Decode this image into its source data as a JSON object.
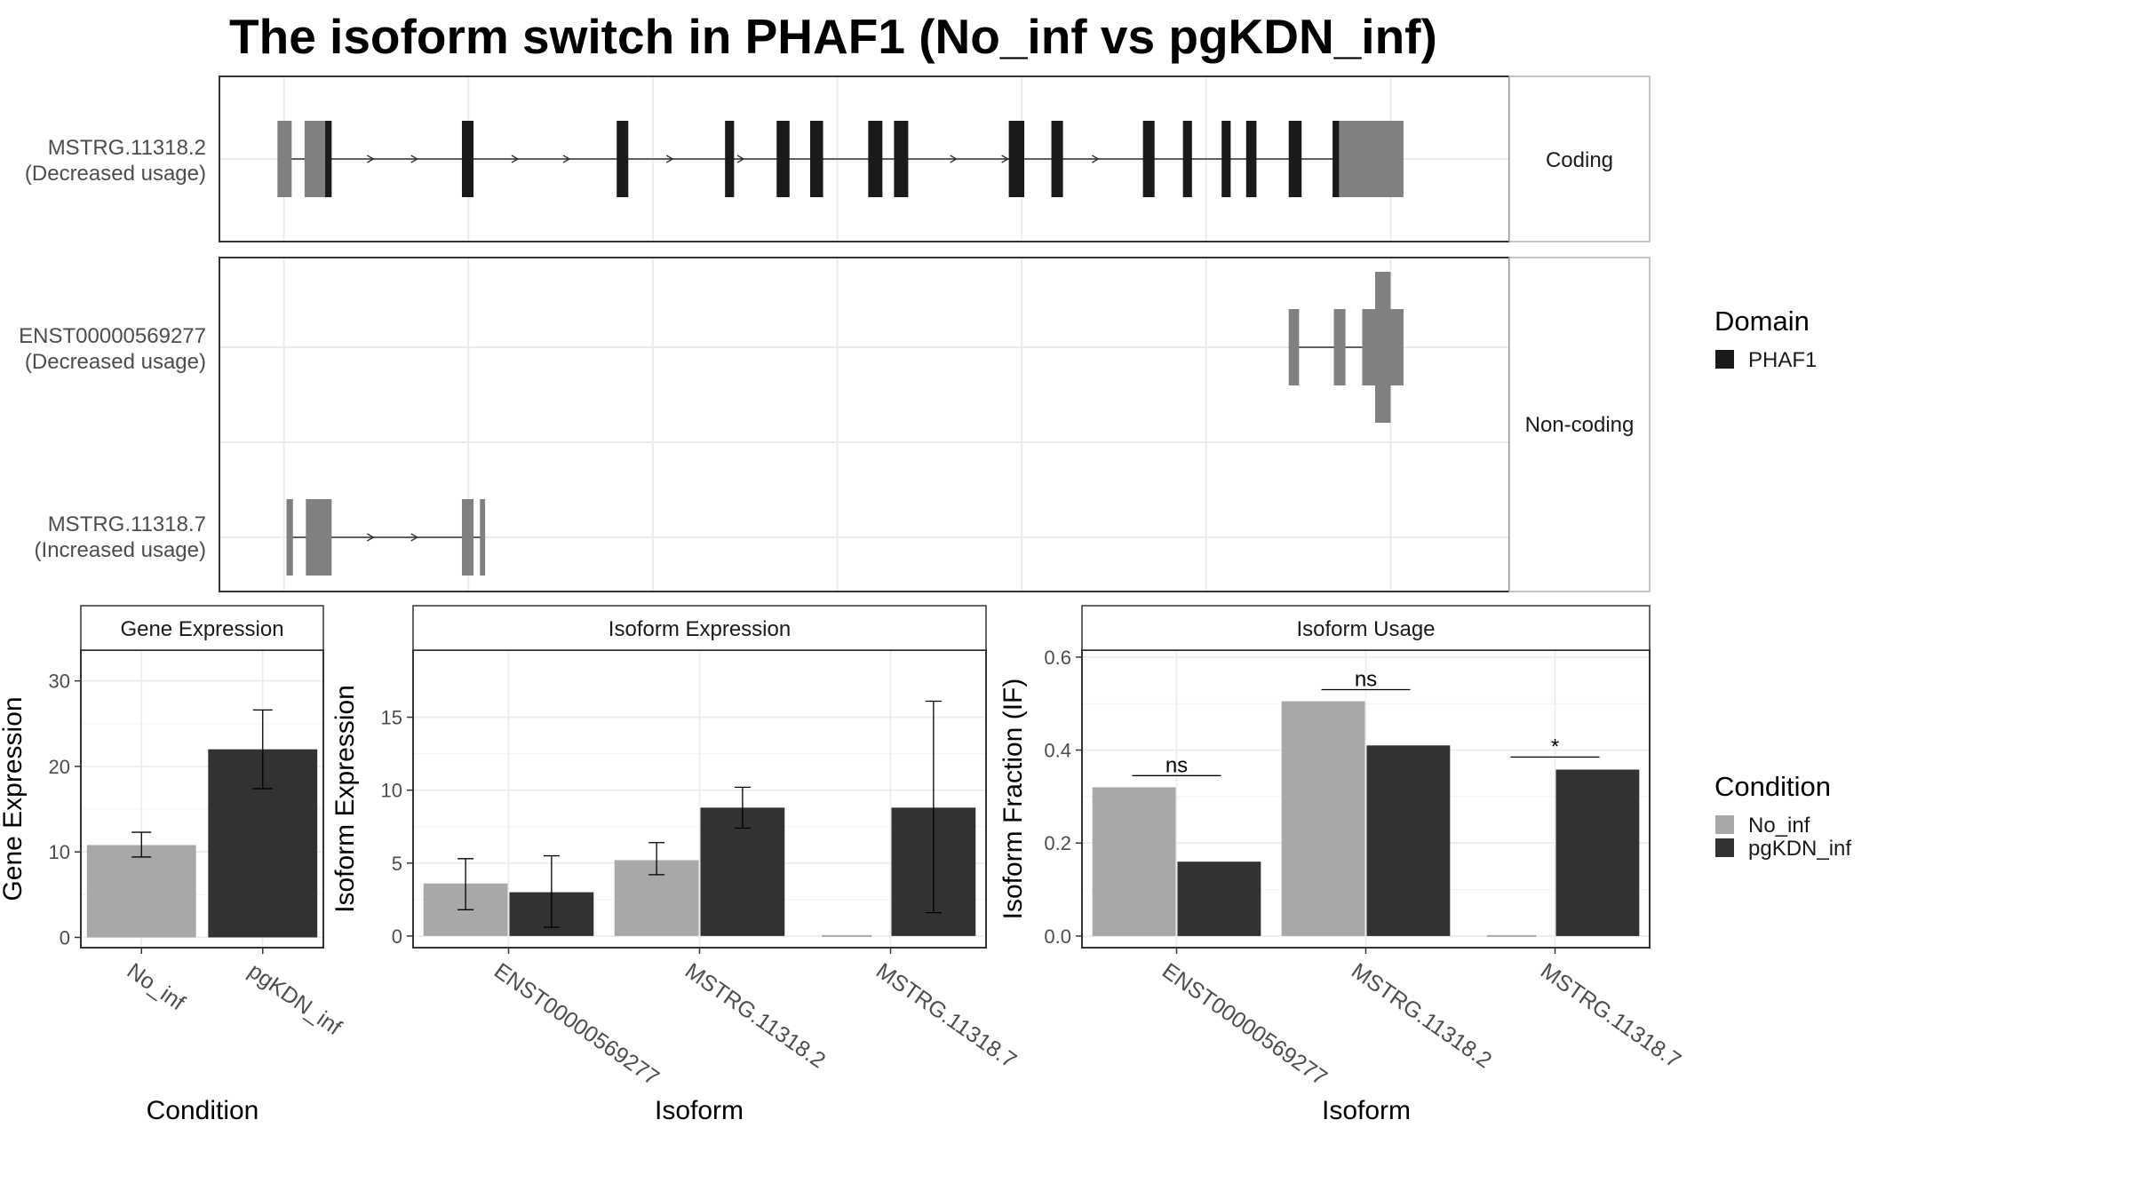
{
  "title": "The isoform switch in PHAF1 (No_inf vs pgKDN_inf)",
  "colors": {
    "domain_fill": "#1a1a1a",
    "exon_fill": "#808080",
    "no_inf": "#a8a8a8",
    "pgkdn_inf": "#323232",
    "grid": "#ebebeb",
    "panel_border": "#333333",
    "strip_border": "#b3b3b3"
  },
  "gene_model": {
    "facets": [
      "Coding",
      "Non-coding"
    ],
    "genome_range": [
      0,
      1000
    ],
    "isoforms": [
      {
        "id": "MSTRG.11318.2",
        "label_line1": "MSTRG.11318.2",
        "label_line2": "(Decreased usage)",
        "facet": "Coding",
        "span": [
          45,
          918
        ],
        "exons": [
          {
            "start": 45,
            "end": 56,
            "kind": "utr"
          },
          {
            "start": 66,
            "end": 80,
            "kind": "utr"
          },
          {
            "start": 75,
            "end": 83,
            "kind": "utr"
          },
          {
            "start": 82,
            "end": 87,
            "kind": "cds"
          },
          {
            "start": 188,
            "end": 197,
            "kind": "cds"
          },
          {
            "start": 308,
            "end": 317,
            "kind": "cds"
          },
          {
            "start": 392,
            "end": 399,
            "kind": "cds"
          },
          {
            "start": 432,
            "end": 442,
            "kind": "cds"
          },
          {
            "start": 458,
            "end": 468,
            "kind": "cds"
          },
          {
            "start": 503,
            "end": 514,
            "kind": "cds"
          },
          {
            "start": 523,
            "end": 534,
            "kind": "cds"
          },
          {
            "start": 612,
            "end": 624,
            "kind": "cds"
          },
          {
            "start": 645,
            "end": 654,
            "kind": "cds"
          },
          {
            "start": 716,
            "end": 725,
            "kind": "cds"
          },
          {
            "start": 747,
            "end": 754,
            "kind": "cds"
          },
          {
            "start": 777,
            "end": 784,
            "kind": "cds"
          },
          {
            "start": 796,
            "end": 804,
            "kind": "cds"
          },
          {
            "start": 829,
            "end": 839,
            "kind": "cds"
          },
          {
            "start": 863,
            "end": 870,
            "kind": "cds"
          },
          {
            "start": 868,
            "end": 918,
            "kind": "utr"
          }
        ],
        "arrows": [
          118,
          152,
          230,
          270,
          350,
          405,
          570,
          610,
          680
        ]
      },
      {
        "id": "ENST00000569277",
        "label_line1": "ENST00000569277",
        "label_line2": "(Decreased usage)",
        "facet": "Non-coding",
        "span": [
          829,
          918
        ],
        "exons": [
          {
            "start": 829,
            "end": 837,
            "kind": "utr"
          },
          {
            "start": 864,
            "end": 873,
            "kind": "utr"
          },
          {
            "start": 886,
            "end": 918,
            "kind": "utr"
          },
          {
            "start": 896,
            "end": 908,
            "kind": "wide"
          }
        ],
        "arrows": []
      },
      {
        "id": "MSTRG.11318.7",
        "label_line1": "MSTRG.11318.7",
        "label_line2": "(Increased usage)",
        "facet": "Non-coding",
        "span": [
          52,
          206
        ],
        "exons": [
          {
            "start": 52,
            "end": 57,
            "kind": "utr"
          },
          {
            "start": 67,
            "end": 87,
            "kind": "utr"
          },
          {
            "start": 188,
            "end": 197,
            "kind": "utr"
          },
          {
            "start": 202,
            "end": 206,
            "kind": "utr"
          }
        ],
        "arrows": [
          118,
          152
        ]
      }
    ]
  },
  "legend_domain": {
    "title": "Domain",
    "items": [
      {
        "label": "PHAF1",
        "color": "#1a1a1a"
      }
    ]
  },
  "legend_condition": {
    "title": "Condition",
    "items": [
      {
        "label": "No_inf",
        "color": "#a8a8a8"
      },
      {
        "label": "pgKDN_inf",
        "color": "#323232"
      }
    ]
  },
  "chart_data": [
    {
      "type": "bar",
      "title": "Gene Expression",
      "xlabel": "Condition",
      "ylabel": "Gene Expression",
      "categories": [
        "No_inf",
        "pgKDN_inf"
      ],
      "values": [
        10.8,
        22.0
      ],
      "error_low": [
        9.4,
        17.4
      ],
      "error_high": [
        12.3,
        26.6
      ],
      "ylim": [
        -1.2,
        33.6
      ],
      "yticks": [
        0,
        10,
        20,
        30
      ]
    },
    {
      "type": "bar",
      "title": "Isoform Expression",
      "xlabel": "Isoform",
      "ylabel": "Isoform Expression",
      "categories": [
        "ENST00000569277",
        "MSTRG.11318.2",
        "MSTRG.11318.7"
      ],
      "series": [
        {
          "name": "No_inf",
          "values": [
            3.6,
            5.2,
            0.0
          ],
          "err_low": [
            1.8,
            4.2,
            0.0
          ],
          "err_high": [
            5.3,
            6.4,
            0.0
          ]
        },
        {
          "name": "pgKDN_inf",
          "values": [
            3.0,
            8.8,
            8.8
          ],
          "err_low": [
            0.6,
            7.4,
            1.6
          ],
          "err_high": [
            5.5,
            10.2,
            16.1
          ]
        }
      ],
      "ylim": [
        -0.8,
        19.6
      ],
      "yticks": [
        0,
        5,
        10,
        15
      ]
    },
    {
      "type": "bar",
      "title": "Isoform Usage",
      "xlabel": "Isoform",
      "ylabel": "Isoform Fraction (IF)",
      "categories": [
        "ENST00000569277",
        "MSTRG.11318.2",
        "MSTRG.11318.7"
      ],
      "series": [
        {
          "name": "No_inf",
          "values": [
            0.32,
            0.505,
            0.0
          ]
        },
        {
          "name": "pgKDN_inf",
          "values": [
            0.16,
            0.41,
            0.358
          ]
        }
      ],
      "significance": [
        {
          "label": "ns",
          "y": 0.345
        },
        {
          "label": "ns",
          "y": 0.53
        },
        {
          "label": "*",
          "y": 0.385
        }
      ],
      "ylim": [
        -0.025,
        0.615
      ],
      "yticks": [
        0.0,
        0.2,
        0.4,
        0.6
      ],
      "ytick_labels": [
        "0.0",
        "0.2",
        "0.4",
        "0.6"
      ]
    }
  ]
}
